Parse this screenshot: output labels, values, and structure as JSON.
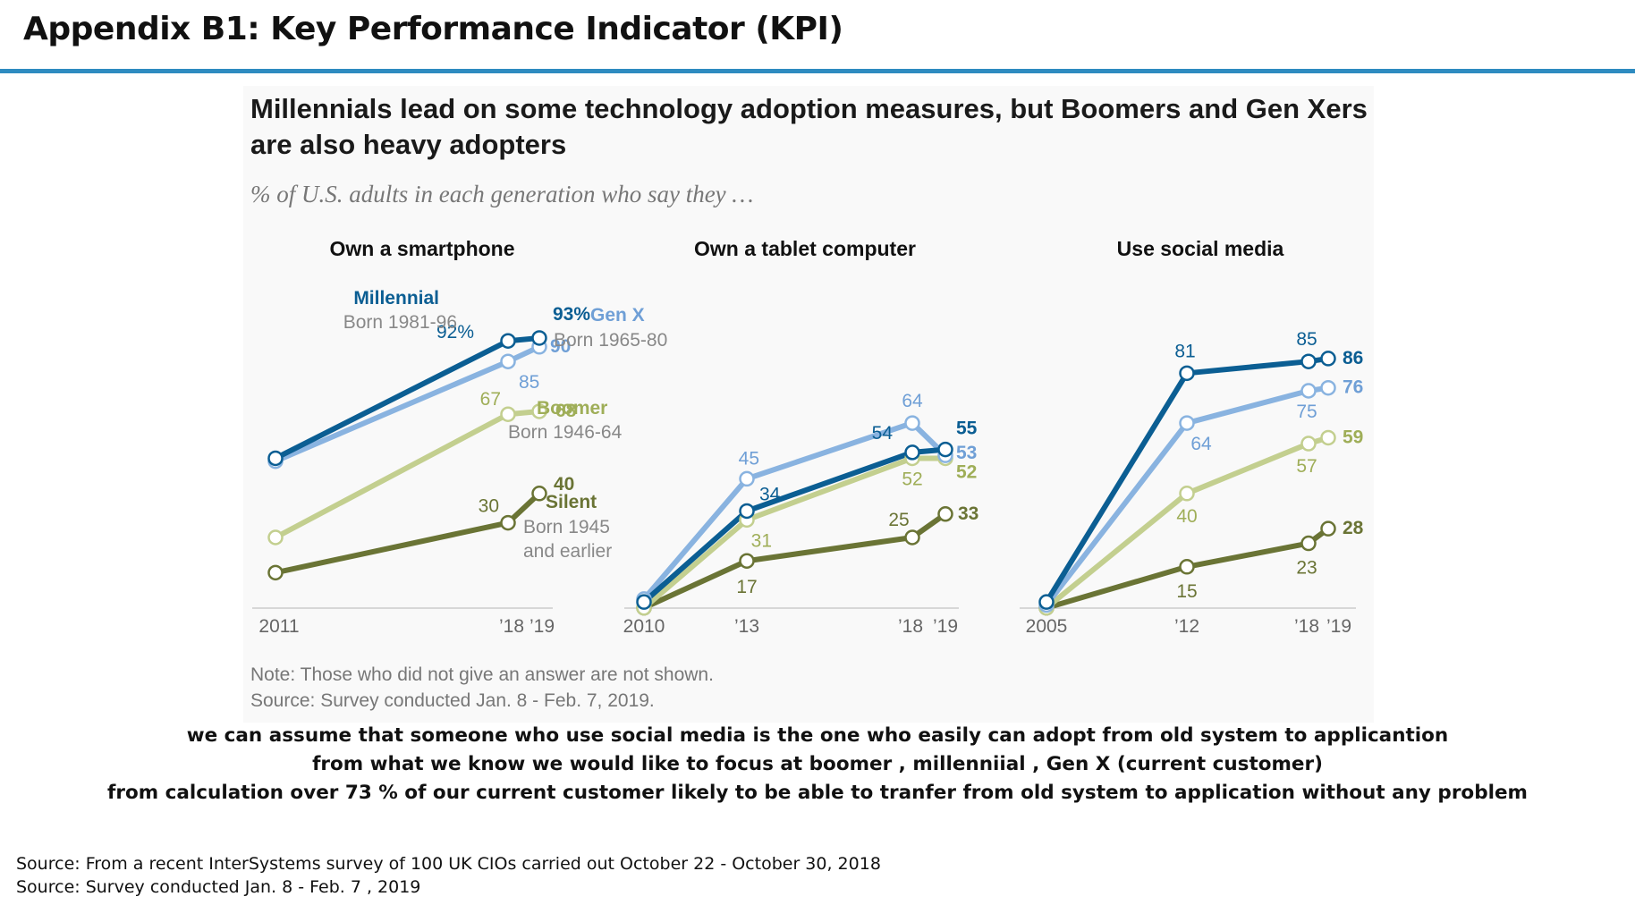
{
  "page_title": "Appendix B1: Key Performance Indicator (KPI)",
  "chart": {
    "title": "Millennials lead on some technology adoption measures, but Boomers and Gen Xers are also heavy adopters",
    "subtitle": "% of U.S. adults in each generation who say they …",
    "note": "Note: Those who did not give an answer are not shown.",
    "source": "Source: Survey conducted Jan. 8 - Feb. 7, 2019."
  },
  "chart_data": [
    {
      "type": "line",
      "title": "Own a smartphone",
      "x": [
        "2011",
        "2018",
        "2019"
      ],
      "tick_labels": [
        "2011",
        "’18",
        "’19"
      ],
      "series": [
        {
          "name": "Millennial",
          "sublabel": "Born 1981-96",
          "values": [
            52,
            92,
            93
          ],
          "color": "#0b5e93",
          "labels": [
            "",
            "92%",
            "93%"
          ]
        },
        {
          "name": "Gen X",
          "sublabel": "Born 1965-80",
          "values": [
            51,
            85,
            90
          ],
          "color": "#89b3e0",
          "labels": [
            "",
            "85",
            "90"
          ]
        },
        {
          "name": "Boomer",
          "sublabel": "Born 1946-64",
          "values": [
            25,
            67,
            68
          ],
          "color": "#c3cf8f",
          "labels": [
            "",
            "67",
            "68"
          ]
        },
        {
          "name": "Silent",
          "sublabel": "Born 1945 and earlier",
          "values": [
            13,
            30,
            40
          ],
          "color": "#6a7435",
          "labels": [
            "",
            "30",
            "40"
          ]
        }
      ]
    },
    {
      "type": "line",
      "title": "Own a tablet computer",
      "x": [
        "2010",
        "2013",
        "2018",
        "2019"
      ],
      "tick_labels": [
        "2010",
        "’13",
        "’18",
        "’19"
      ],
      "series": [
        {
          "name": "Millennial",
          "values": [
            3,
            34,
            54,
            55
          ],
          "color": "#0b5e93",
          "labels": [
            "",
            "34",
            "54",
            "55"
          ]
        },
        {
          "name": "Gen X",
          "values": [
            4,
            45,
            64,
            53
          ],
          "color": "#89b3e0",
          "labels": [
            "",
            "45",
            "64",
            "53"
          ]
        },
        {
          "name": "Boomer",
          "values": [
            1,
            31,
            52,
            52
          ],
          "color": "#c3cf8f",
          "labels": [
            "",
            "31",
            "52",
            "52"
          ]
        },
        {
          "name": "Silent",
          "values": [
            1,
            17,
            25,
            33
          ],
          "color": "#6a7435",
          "labels": [
            "",
            "17",
            "25",
            "33"
          ]
        }
      ]
    },
    {
      "type": "line",
      "title": "Use social media",
      "x": [
        "2005",
        "2012",
        "2018",
        "2019"
      ],
      "tick_labels": [
        "2005",
        "’12",
        "’18",
        "’19"
      ],
      "series": [
        {
          "name": "Millennial",
          "values": [
            3,
            81,
            85,
            86
          ],
          "color": "#0b5e93",
          "labels": [
            "",
            "81",
            "85",
            "86"
          ]
        },
        {
          "name": "Gen X",
          "values": [
            2,
            64,
            75,
            76
          ],
          "color": "#89b3e0",
          "labels": [
            "",
            "64",
            "75",
            "76"
          ]
        },
        {
          "name": "Boomer",
          "values": [
            1,
            40,
            57,
            59
          ],
          "color": "#c3cf8f",
          "labels": [
            "",
            "40",
            "57",
            "59"
          ]
        },
        {
          "name": "Silent",
          "values": [
            1,
            15,
            23,
            28
          ],
          "color": "#6a7435",
          "labels": [
            "",
            "15",
            "23",
            "28"
          ]
        }
      ]
    }
  ],
  "comments": [
    "we can assume that someone who use social media is the one who easily can adopt from old system to applicantion",
    "from what we know we would like to focus at boomer , millenniial , Gen X (current customer)",
    "from calculation over 73 % of our current customer likely to be able to tranfer from old system to application without any problem"
  ],
  "sources": [
    "Source: From  a recent InterSystems survey of 100 UK CIOs carried out  October 22 - October 30, 2018",
    "Source: Survey conducted Jan. 8 - Feb. 7 , 2019"
  ]
}
